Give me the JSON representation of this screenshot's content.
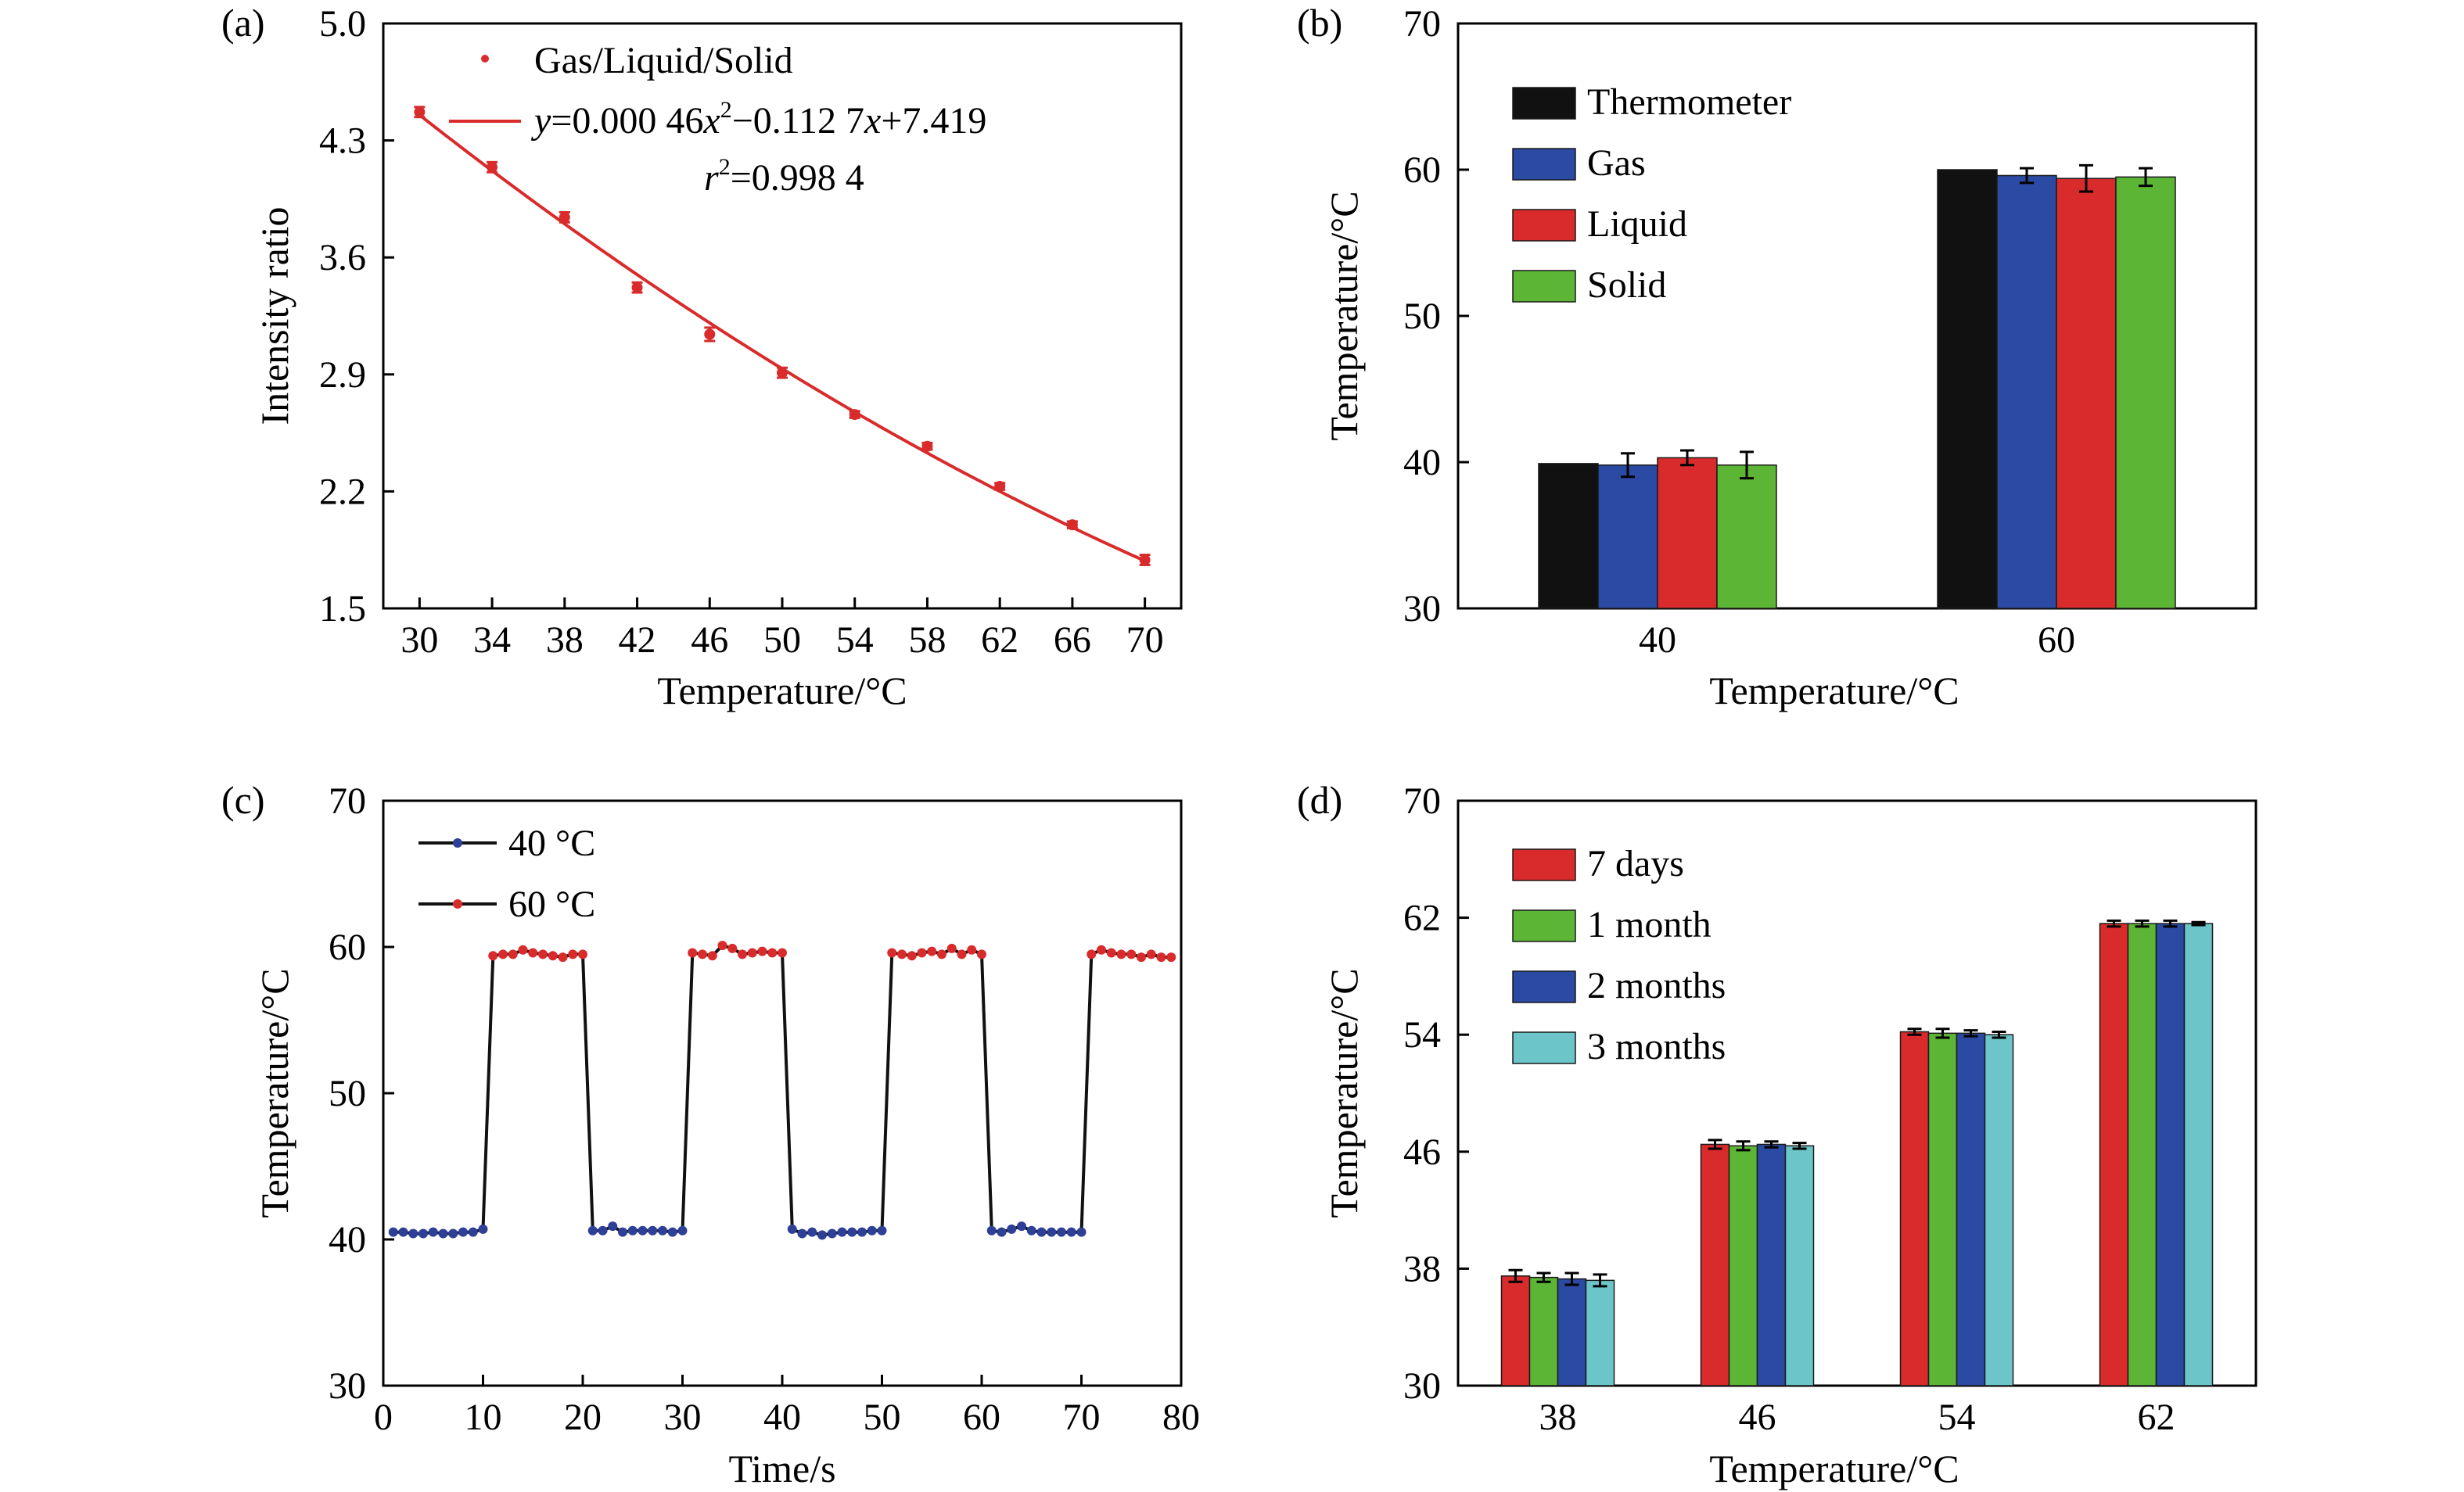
{
  "panels": {
    "a": {
      "label": "(a)"
    },
    "b": {
      "label": "(b)"
    },
    "c": {
      "label": "(c)"
    },
    "d": {
      "label": "(d)"
    }
  },
  "colors": {
    "red": "#d92b2b",
    "black": "#111111",
    "blue": "#2b4aa3",
    "green": "#5db536",
    "cyan": "#6cc6c9",
    "dot_blue": "#2d3f96"
  },
  "chart_data": [
    {
      "id": "a",
      "type": "scatter",
      "xlabel": "Temperature/°C",
      "ylabel": "Intensity ratio",
      "xlim": [
        28,
        72
      ],
      "ylim": [
        1.5,
        5.0
      ],
      "xticks": [
        "30",
        "34",
        "38",
        "42",
        "46",
        "50",
        "54",
        "58",
        "62",
        "66",
        "70"
      ],
      "xtick_values": [
        30,
        34,
        38,
        42,
        46,
        50,
        54,
        58,
        62,
        66,
        70
      ],
      "yticks": [
        "1.5",
        "2.2",
        "2.9",
        "3.6",
        "4.3",
        "5.0"
      ],
      "ytick_values": [
        1.5,
        2.2,
        2.9,
        3.6,
        4.3,
        5.0
      ],
      "series": [
        {
          "name": "Gas/Liquid/Solid",
          "x": [
            30,
            34,
            38,
            42,
            46,
            50,
            54,
            58,
            62,
            66,
            70
          ],
          "y": [
            4.47,
            4.14,
            3.84,
            3.42,
            3.14,
            2.91,
            2.66,
            2.47,
            2.23,
            2.0,
            1.79
          ],
          "err": [
            0.03,
            0.03,
            0.03,
            0.03,
            0.04,
            0.03,
            0.02,
            0.02,
            0.02,
            0.02,
            0.03
          ]
        }
      ],
      "fit": {
        "a": 0.00046,
        "b": -0.1127,
        "c": 7.419
      },
      "legend": {
        "points": "Gas/Liquid/Solid",
        "fit_eq_parts": [
          "y",
          "=0.000 46",
          "x",
          "2",
          "−0.112 7",
          "x",
          "+7.419"
        ],
        "r2_parts": [
          "r",
          "2",
          "=0.998 4"
        ]
      }
    },
    {
      "id": "b",
      "type": "bar",
      "xlabel": "Temperature/°C",
      "ylabel": "Temperature/°C",
      "ylim": [
        30,
        70
      ],
      "yticks": [
        "30",
        "40",
        "50",
        "60",
        "70"
      ],
      "ytick_values": [
        30,
        40,
        50,
        60,
        70
      ],
      "categories": [
        "40",
        "60"
      ],
      "series": [
        {
          "name": "Thermometer",
          "values": [
            39.9,
            60.0
          ],
          "err": [
            0,
            0
          ]
        },
        {
          "name": "Gas",
          "values": [
            39.8,
            59.6
          ],
          "err": [
            0.8,
            0.5
          ]
        },
        {
          "name": "Liquid",
          "values": [
            40.3,
            59.4
          ],
          "err": [
            0.5,
            0.9
          ]
        },
        {
          "name": "Solid",
          "values": [
            39.8,
            59.5
          ],
          "err": [
            0.9,
            0.6
          ]
        }
      ]
    },
    {
      "id": "c",
      "type": "line",
      "xlabel": "Time/s",
      "ylabel": "Temperature/°C",
      "xlim": [
        0,
        80
      ],
      "ylim": [
        30,
        70
      ],
      "xticks": [
        "0",
        "10",
        "20",
        "30",
        "40",
        "50",
        "60",
        "70",
        "80"
      ],
      "xtick_values": [
        0,
        10,
        20,
        30,
        40,
        50,
        60,
        70,
        80
      ],
      "yticks": [
        "30",
        "40",
        "50",
        "60",
        "70"
      ],
      "ytick_values": [
        30,
        40,
        50,
        60,
        70
      ],
      "series": [
        {
          "name": "40 °C",
          "x": [
            1,
            2,
            3,
            4,
            5,
            6,
            7,
            8,
            9,
            10,
            21,
            22,
            23,
            24,
            25,
            26,
            27,
            28,
            29,
            30,
            41,
            42,
            43,
            44,
            45,
            46,
            47,
            48,
            49,
            50,
            61,
            62,
            63,
            64,
            65,
            66,
            67,
            68,
            69,
            70
          ],
          "y": [
            40.5,
            40.5,
            40.4,
            40.4,
            40.5,
            40.4,
            40.4,
            40.5,
            40.5,
            40.7,
            40.6,
            40.6,
            40.9,
            40.5,
            40.6,
            40.6,
            40.6,
            40.6,
            40.5,
            40.6,
            40.7,
            40.4,
            40.5,
            40.3,
            40.4,
            40.5,
            40.5,
            40.5,
            40.6,
            40.6,
            40.6,
            40.5,
            40.7,
            40.9,
            40.6,
            40.5,
            40.5,
            40.5,
            40.5,
            40.5
          ]
        },
        {
          "name": "60 °C",
          "x": [
            11,
            12,
            13,
            14,
            15,
            16,
            17,
            18,
            19,
            20,
            31,
            32,
            33,
            34,
            35,
            36,
            37,
            38,
            39,
            40,
            51,
            52,
            53,
            54,
            55,
            56,
            57,
            58,
            59,
            60,
            71,
            72,
            73,
            74,
            75,
            76,
            77,
            78,
            79
          ],
          "y": [
            59.4,
            59.5,
            59.5,
            59.8,
            59.6,
            59.5,
            59.4,
            59.3,
            59.5,
            59.5,
            59.6,
            59.5,
            59.4,
            60.1,
            59.9,
            59.5,
            59.6,
            59.7,
            59.6,
            59.6,
            59.6,
            59.5,
            59.4,
            59.6,
            59.7,
            59.5,
            59.9,
            59.5,
            59.8,
            59.5,
            59.5,
            59.8,
            59.6,
            59.5,
            59.5,
            59.3,
            59.5,
            59.3,
            59.3
          ]
        }
      ],
      "line": {
        "x": [
          1,
          2,
          3,
          4,
          5,
          6,
          7,
          8,
          9,
          10,
          11,
          12,
          13,
          14,
          15,
          16,
          17,
          18,
          19,
          20,
          21,
          22,
          23,
          24,
          25,
          26,
          27,
          28,
          29,
          30,
          31,
          32,
          33,
          34,
          35,
          36,
          37,
          38,
          39,
          40,
          41,
          42,
          43,
          44,
          45,
          46,
          47,
          48,
          49,
          50,
          51,
          52,
          53,
          54,
          55,
          56,
          57,
          58,
          59,
          60,
          61,
          62,
          63,
          64,
          65,
          66,
          67,
          68,
          69,
          70,
          71,
          72,
          73,
          74,
          75,
          76,
          77,
          78,
          79
        ]
      }
    },
    {
      "id": "d",
      "type": "bar",
      "xlabel": "Temperature/°C",
      "ylabel": "Temperature/°C",
      "ylim": [
        30,
        70
      ],
      "yticks": [
        "30",
        "38",
        "46",
        "54",
        "62",
        "70"
      ],
      "ytick_values": [
        30,
        38,
        46,
        54,
        62,
        70
      ],
      "categories": [
        "38",
        "46",
        "54",
        "62"
      ],
      "series": [
        {
          "name": "7 days",
          "values": [
            37.5,
            46.5,
            54.2,
            61.6
          ],
          "err": [
            0.4,
            0.3,
            0.2,
            0.2
          ]
        },
        {
          "name": "1 month",
          "values": [
            37.4,
            46.4,
            54.1,
            61.6
          ],
          "err": [
            0.3,
            0.3,
            0.3,
            0.2
          ]
        },
        {
          "name": "2 months",
          "values": [
            37.3,
            46.5,
            54.1,
            61.6
          ],
          "err": [
            0.4,
            0.2,
            0.2,
            0.2
          ]
        },
        {
          "name": "3 months",
          "values": [
            37.2,
            46.4,
            54.0,
            61.6
          ],
          "err": [
            0.4,
            0.2,
            0.2,
            0.1
          ]
        }
      ]
    }
  ]
}
